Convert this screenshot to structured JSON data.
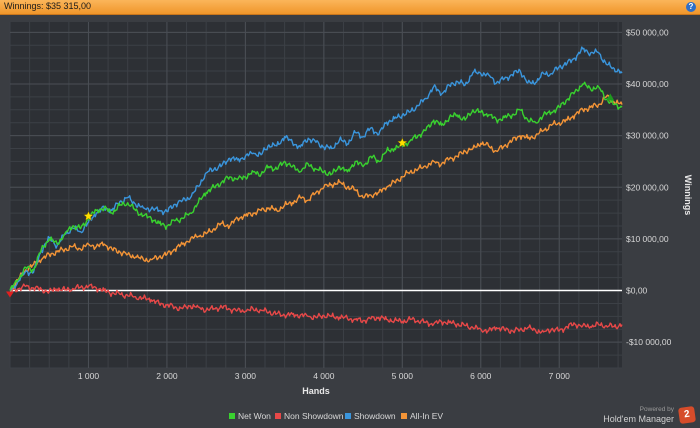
{
  "window": {
    "title": "Winnings: $35 315,00",
    "help_glyph": "?"
  },
  "chart_data": {
    "type": "line",
    "xlabel": "Hands",
    "ylabel": "Winnings",
    "xlim": [
      0,
      7800
    ],
    "ylim": [
      -15000,
      52000
    ],
    "x_ticks": [
      1000,
      2000,
      3000,
      4000,
      5000,
      6000,
      7000
    ],
    "x_tick_labels": [
      "1 000",
      "2 000",
      "3 000",
      "4 000",
      "5 000",
      "6 000",
      "7 000"
    ],
    "y_ticks": [
      -10000,
      0,
      10000,
      20000,
      30000,
      40000,
      50000
    ],
    "y_tick_labels": [
      "-$10 000,00",
      "$0,00",
      "$10 000,00",
      "$20 000,00",
      "$30 000,00",
      "$40 000,00",
      "$50 000,00"
    ],
    "grid": true,
    "legend_position": "bottom-center",
    "x": [
      0,
      100,
      200,
      300,
      400,
      500,
      600,
      700,
      800,
      900,
      1000,
      1100,
      1200,
      1300,
      1400,
      1500,
      1600,
      1700,
      1800,
      1900,
      2000,
      2100,
      2200,
      2300,
      2400,
      2500,
      2600,
      2700,
      2800,
      2900,
      3000,
      3100,
      3200,
      3300,
      3400,
      3500,
      3600,
      3700,
      3800,
      3900,
      4000,
      4100,
      4200,
      4300,
      4400,
      4500,
      4600,
      4700,
      4800,
      4900,
      5000,
      5100,
      5200,
      5300,
      5400,
      5500,
      5600,
      5700,
      5800,
      5900,
      6000,
      6100,
      6200,
      6300,
      6400,
      6500,
      6600,
      6700,
      6800,
      6900,
      7000,
      7100,
      7200,
      7300,
      7400,
      7500,
      7600,
      7700,
      7800
    ],
    "series": [
      {
        "name": "Net Won",
        "color": "#39d12f",
        "values": [
          0,
          2000,
          4500,
          4000,
          8000,
          10000,
          9000,
          11000,
          12500,
          12000,
          14000,
          15500,
          16000,
          15000,
          16500,
          17000,
          15500,
          14500,
          14000,
          13000,
          12500,
          13500,
          14000,
          15000,
          17000,
          19000,
          20000,
          21000,
          22000,
          21500,
          22000,
          23000,
          22500,
          24000,
          23500,
          25000,
          24000,
          23000,
          24500,
          23500,
          23000,
          22500,
          24000,
          23000,
          25000,
          24000,
          26000,
          25000,
          27000,
          27500,
          28000,
          29000,
          30000,
          31000,
          33000,
          32000,
          33500,
          34000,
          33000,
          35000,
          34500,
          34000,
          33000,
          33500,
          34000,
          35000,
          33000,
          32500,
          34000,
          34500,
          35500,
          37000,
          38500,
          40000,
          39000,
          39500,
          37000,
          36000,
          35500
        ]
      },
      {
        "name": "Non Showdown",
        "color": "#e74848",
        "values": [
          0,
          300,
          800,
          500,
          200,
          -200,
          300,
          100,
          400,
          600,
          800,
          500,
          0,
          -500,
          -700,
          -1000,
          -1200,
          -1500,
          -1800,
          -2500,
          -2800,
          -3200,
          -3500,
          -3000,
          -3200,
          -3800,
          -3500,
          -3200,
          -3600,
          -3800,
          -4000,
          -3600,
          -3800,
          -4200,
          -4500,
          -4800,
          -4600,
          -4800,
          -5000,
          -5200,
          -4800,
          -5000,
          -5200,
          -5400,
          -5600,
          -5800,
          -5500,
          -5200,
          -5600,
          -5800,
          -6000,
          -5600,
          -5800,
          -6200,
          -6500,
          -6000,
          -6200,
          -6500,
          -6800,
          -7200,
          -7500,
          -7800,
          -7200,
          -7500,
          -7800,
          -7600,
          -7200,
          -7800,
          -8000,
          -7500,
          -7800,
          -7000,
          -6500,
          -6800,
          -7000,
          -6600,
          -6800,
          -7000,
          -6600
        ]
      },
      {
        "name": "Showdown",
        "color": "#3a95dc",
        "values": [
          0,
          1700,
          3700,
          3500,
          7800,
          10200,
          8700,
          10900,
          12100,
          11400,
          13200,
          15000,
          16000,
          15500,
          17200,
          18000,
          16700,
          16000,
          15800,
          15500,
          15300,
          16700,
          17500,
          18000,
          20200,
          22800,
          23500,
          24200,
          25600,
          25300,
          26000,
          26600,
          26300,
          28200,
          28000,
          29800,
          28600,
          27800,
          29500,
          28700,
          27800,
          27500,
          29200,
          28400,
          30600,
          29800,
          31500,
          30200,
          32600,
          33300,
          34000,
          34600,
          35800,
          37200,
          39500,
          38000,
          39700,
          40500,
          39800,
          42200,
          42000,
          41800,
          40200,
          41000,
          41800,
          42600,
          40200,
          40300,
          42000,
          42000,
          43300,
          44000,
          45000,
          46800,
          46000,
          46100,
          43800,
          43000,
          42100
        ]
      },
      {
        "name": "All-In EV",
        "color": "#f39437",
        "values": [
          0,
          2000,
          4000,
          5000,
          6000,
          7000,
          7500,
          8000,
          8500,
          8000,
          9000,
          8500,
          9000,
          8000,
          7500,
          7000,
          6500,
          6000,
          6000,
          6500,
          7000,
          8000,
          9000,
          10000,
          10500,
          11000,
          12000,
          13000,
          12500,
          14000,
          14500,
          15000,
          15500,
          16000,
          15500,
          16500,
          17000,
          18000,
          17500,
          19000,
          20000,
          20500,
          21000,
          20000,
          19500,
          18000,
          18500,
          19000,
          20000,
          21000,
          22000,
          23000,
          23500,
          24000,
          25000,
          24500,
          25500,
          26000,
          27000,
          27500,
          28500,
          28000,
          27000,
          28000,
          29000,
          30000,
          29500,
          30000,
          31000,
          32000,
          32500,
          33000,
          34000,
          35000,
          35500,
          36000,
          37500,
          36500,
          36000
        ]
      }
    ]
  },
  "legend": [
    "Net Won",
    "Non Showdown",
    "Showdown",
    "All-In EV"
  ],
  "footer": {
    "powered": "Powered by",
    "brand": "Hold'em Manager",
    "badge": "2"
  }
}
